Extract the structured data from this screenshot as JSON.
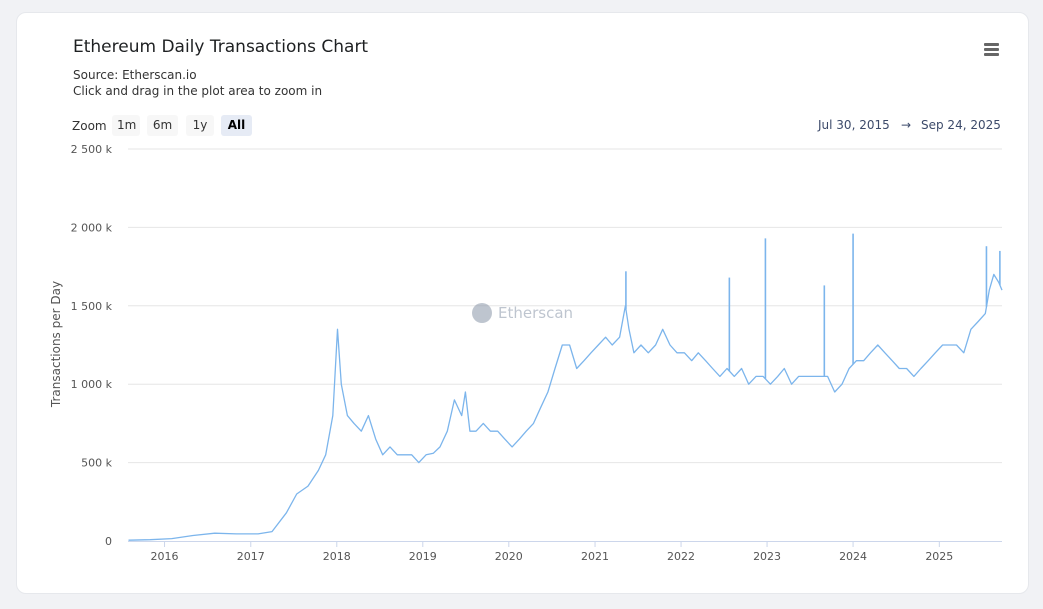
{
  "chart_data": {
    "type": "line",
    "title": "Ethereum Daily Transactions Chart",
    "subtitle": "Source: Etherscan.io",
    "subtitle2": "Click and drag in the plot area to zoom in",
    "ylabel": "Transactions per Day",
    "y_ticks": [
      "0",
      "500 k",
      "1 000 k",
      "1 500 k",
      "2 000 k",
      "2 500 k"
    ],
    "y_tick_values": [
      0,
      500000,
      1000000,
      1500000,
      2000000,
      2500000
    ],
    "ylim": [
      0,
      2500000
    ],
    "x_ticks": [
      "2016",
      "2017",
      "2018",
      "2019",
      "2020",
      "2021",
      "2022",
      "2023",
      "2024",
      "2025"
    ],
    "xlim": [
      "2015-07-30",
      "2025-09-24"
    ],
    "grid": true,
    "color": "#7cb5ec",
    "series": [
      {
        "x": [
          "2015-08-01",
          "2015-11-01",
          "2016-02-01",
          "2016-05-01",
          "2016-08-01",
          "2016-11-01",
          "2017-02-01",
          "2017-04-01",
          "2017-06-01",
          "2017-07-15",
          "2017-09-01",
          "2017-10-15",
          "2017-11-15",
          "2017-12-15",
          "2018-01-04",
          "2018-01-20",
          "2018-02-15",
          "2018-03-15",
          "2018-04-15",
          "2018-05-15",
          "2018-06-15",
          "2018-07-15",
          "2018-08-15",
          "2018-09-15",
          "2018-10-15",
          "2018-11-15",
          "2018-12-15",
          "2019-01-15",
          "2019-02-15",
          "2019-03-15",
          "2019-04-15",
          "2019-05-15",
          "2019-06-15",
          "2019-07-01",
          "2019-07-20",
          "2019-08-15",
          "2019-09-15",
          "2019-10-15",
          "2019-11-15",
          "2019-12-15",
          "2020-01-15",
          "2020-02-15",
          "2020-03-15",
          "2020-04-15",
          "2020-05-15",
          "2020-06-15",
          "2020-07-15",
          "2020-08-15",
          "2020-09-15",
          "2020-10-15",
          "2020-11-15",
          "2020-12-15",
          "2021-01-15",
          "2021-02-15",
          "2021-03-15",
          "2021-04-15",
          "2021-05-10",
          "2021-05-25",
          "2021-06-15",
          "2021-07-15",
          "2021-08-15",
          "2021-09-15",
          "2021-10-15",
          "2021-11-15",
          "2021-12-15",
          "2022-01-15",
          "2022-02-15",
          "2022-03-15",
          "2022-04-15",
          "2022-05-15",
          "2022-06-15",
          "2022-07-15",
          "2022-08-15",
          "2022-09-15",
          "2022-10-15",
          "2022-11-15",
          "2022-12-15",
          "2023-01-15",
          "2023-02-15",
          "2023-03-15",
          "2023-04-15",
          "2023-05-15",
          "2023-06-15",
          "2023-07-15",
          "2023-08-15",
          "2023-09-15",
          "2023-10-15",
          "2023-11-15",
          "2023-12-15",
          "2024-01-15",
          "2024-02-15",
          "2024-03-15",
          "2024-04-15",
          "2024-05-15",
          "2024-06-15",
          "2024-07-15",
          "2024-08-15",
          "2024-09-15",
          "2024-10-15",
          "2024-11-15",
          "2024-12-15",
          "2025-01-15",
          "2025-02-15",
          "2025-03-15",
          "2025-04-15",
          "2025-05-15",
          "2025-06-15",
          "2025-07-15",
          "2025-08-01",
          "2025-08-20",
          "2025-09-10",
          "2025-09-24"
        ],
        "y": [
          5000,
          8000,
          15000,
          35000,
          50000,
          45000,
          45000,
          60000,
          180000,
          300000,
          350000,
          450000,
          550000,
          800000,
          1350000,
          1000000,
          800000,
          750000,
          700000,
          800000,
          650000,
          550000,
          600000,
          550000,
          550000,
          550000,
          500000,
          550000,
          560000,
          600000,
          700000,
          900000,
          800000,
          950000,
          700000,
          700000,
          750000,
          700000,
          700000,
          650000,
          600000,
          650000,
          700000,
          750000,
          850000,
          950000,
          1100000,
          1250000,
          1250000,
          1100000,
          1150000,
          1200000,
          1250000,
          1300000,
          1250000,
          1300000,
          1500000,
          1350000,
          1200000,
          1250000,
          1200000,
          1250000,
          1350000,
          1250000,
          1200000,
          1200000,
          1150000,
          1200000,
          1150000,
          1100000,
          1050000,
          1100000,
          1050000,
          1100000,
          1000000,
          1050000,
          1050000,
          1000000,
          1050000,
          1100000,
          1000000,
          1050000,
          1050000,
          1050000,
          1050000,
          1050000,
          950000,
          1000000,
          1100000,
          1150000,
          1150000,
          1200000,
          1250000,
          1200000,
          1150000,
          1100000,
          1100000,
          1050000,
          1100000,
          1150000,
          1200000,
          1250000,
          1250000,
          1250000,
          1200000,
          1350000,
          1400000,
          1450000,
          1600000,
          1700000,
          1650000,
          1600000
        ]
      }
    ],
    "spikes": [
      {
        "x": "2021-05-12",
        "y": 1720000
      },
      {
        "x": "2022-07-25",
        "y": 1680000
      },
      {
        "x": "2022-12-25",
        "y": 1930000
      },
      {
        "x": "2023-09-01",
        "y": 1630000
      },
      {
        "x": "2024-01-01",
        "y": 1960000
      },
      {
        "x": "2025-07-20",
        "y": 1880000
      },
      {
        "x": "2025-09-15",
        "y": 1850000
      }
    ]
  },
  "ui": {
    "zoom_label": "Zoom",
    "zoom_buttons": [
      "1m",
      "6m",
      "1y",
      "All"
    ],
    "range_from": "Jul 30, 2015",
    "range_arrow": "→",
    "range_to": "Sep 24, 2025",
    "watermark": "Etherscan"
  }
}
